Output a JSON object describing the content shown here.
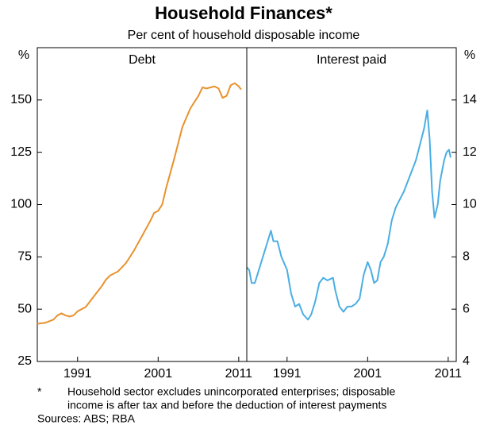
{
  "title": "Household Finances*",
  "subtitle": "Per cent of household disposable income",
  "footnote": {
    "marker": "*",
    "lines": [
      "Household sector excludes unincorporated enterprises; disposable",
      "income is after tax and before the deduction of interest payments"
    ]
  },
  "sources": "Sources: ABS; RBA",
  "chart_data": [
    {
      "type": "line",
      "title": "Debt",
      "y_label": "%",
      "x": [
        1986.0,
        1987.0,
        1988.0,
        1988.5,
        1989.0,
        1989.5,
        1990.0,
        1990.5,
        1991.0,
        1992.0,
        1993.0,
        1994.0,
        1994.5,
        1995.0,
        1996.0,
        1997.0,
        1998.0,
        1999.0,
        2000.0,
        2000.5,
        2001.0,
        2001.5,
        2002.0,
        2003.0,
        2004.0,
        2005.0,
        2006.0,
        2006.5,
        2007.0,
        2007.5,
        2008.0,
        2008.5,
        2009.0,
        2009.5,
        2010.0,
        2010.5,
        2011.0,
        2011.3
      ],
      "series": [
        {
          "color": "#e8922e",
          "values": [
            43,
            43.5,
            45,
            47,
            48,
            47,
            46.5,
            47,
            49,
            51,
            56,
            61,
            64,
            66,
            68,
            72,
            78,
            85,
            92,
            96,
            97,
            100,
            108,
            122,
            137,
            146,
            152,
            156,
            155.5,
            156,
            156.5,
            155.5,
            151,
            152,
            157,
            158,
            156.5,
            155
          ]
        }
      ],
      "xlim": [
        1986,
        2012
      ],
      "xticks": [
        1991,
        2001,
        2011
      ],
      "ylim": [
        25,
        175
      ],
      "yticks": [
        25,
        50,
        75,
        100,
        125,
        150
      ]
    },
    {
      "type": "line",
      "title": "Interest paid",
      "y_label": "%",
      "x": [
        1986.0,
        1986.3,
        1986.6,
        1987.0,
        1987.5,
        1988.0,
        1988.5,
        1989.0,
        1989.3,
        1989.8,
        1990.3,
        1991.0,
        1991.5,
        1992.0,
        1992.5,
        1993.0,
        1993.6,
        1994.0,
        1994.5,
        1995.0,
        1995.5,
        1996.0,
        1996.7,
        1997.0,
        1997.5,
        1998.0,
        1998.5,
        1999.0,
        1999.5,
        2000.0,
        2000.5,
        2001.0,
        2001.4,
        2001.8,
        2002.2,
        2002.6,
        2003.0,
        2003.5,
        2004.0,
        2004.5,
        2005.0,
        2005.5,
        2006.0,
        2006.5,
        2007.0,
        2007.5,
        2008.0,
        2008.4,
        2008.7,
        2009.0,
        2009.3,
        2009.7,
        2010.0,
        2010.5,
        2010.8,
        2011.1,
        2011.3
      ],
      "series": [
        {
          "color": "#4aaee3",
          "axis": "y2",
          "values": [
            7.6,
            7.5,
            7.0,
            7.0,
            7.5,
            8.0,
            8.5,
            9.0,
            8.6,
            8.6,
            8.0,
            7.5,
            6.6,
            6.1,
            6.2,
            5.8,
            5.6,
            5.8,
            6.3,
            7.0,
            7.2,
            7.1,
            7.2,
            6.7,
            6.1,
            5.9,
            6.1,
            6.1,
            6.2,
            6.4,
            7.3,
            7.8,
            7.5,
            7.0,
            7.1,
            7.8,
            8.0,
            8.5,
            9.4,
            9.9,
            10.2,
            10.5,
            10.9,
            11.3,
            11.7,
            12.3,
            12.9,
            13.6,
            12.5,
            10.5,
            9.5,
            10.0,
            10.9,
            11.7,
            12.0,
            12.1,
            11.8
          ]
        }
      ],
      "xlim": [
        1986,
        2012
      ],
      "xticks": [
        1991,
        2001,
        2011
      ],
      "y2lim": [
        4,
        16
      ],
      "y2ticks": [
        4,
        6,
        8,
        10,
        12,
        14
      ]
    }
  ]
}
